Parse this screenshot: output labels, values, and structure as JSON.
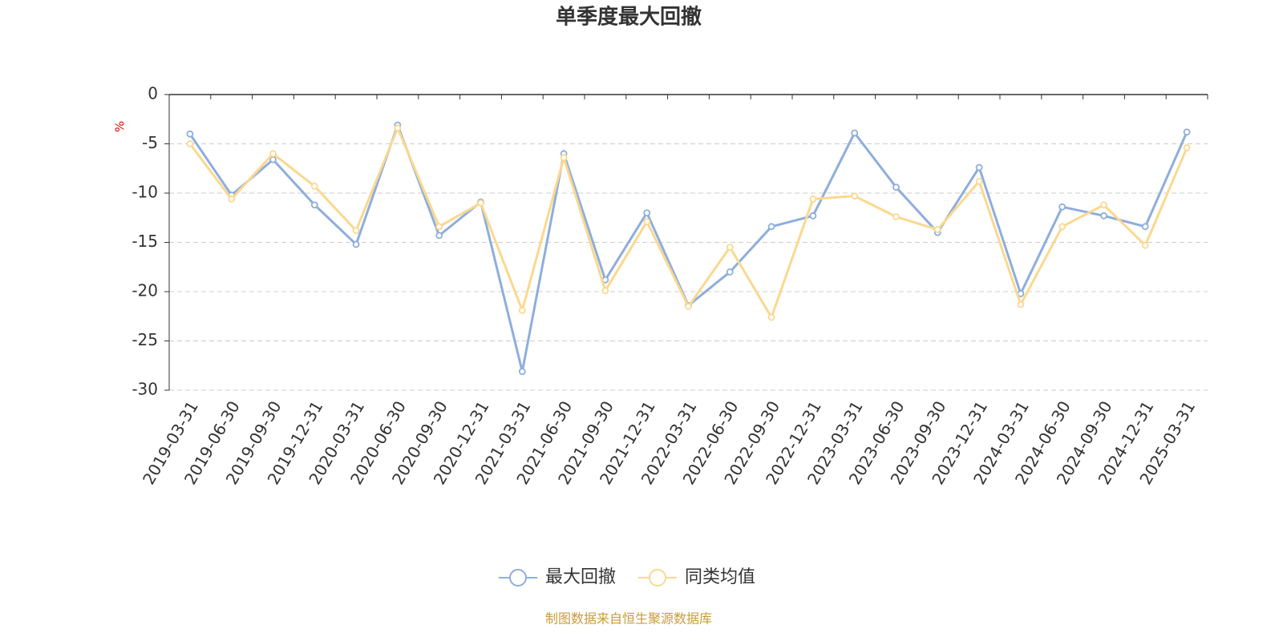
{
  "chart_data": {
    "type": "line",
    "title": "单季度最大回撤",
    "y_label": "%",
    "categories": [
      "2019-03-31",
      "2019-06-30",
      "2019-09-30",
      "2019-12-31",
      "2020-03-31",
      "2020-06-30",
      "2020-09-30",
      "2020-12-31",
      "2021-03-31",
      "2021-06-30",
      "2021-09-30",
      "2021-12-31",
      "2022-03-31",
      "2022-06-30",
      "2022-09-30",
      "2022-12-31",
      "2023-03-31",
      "2023-06-30",
      "2023-09-30",
      "2023-12-31",
      "2024-03-31",
      "2024-06-30",
      "2024-09-30",
      "2024-12-31",
      "2025-03-31"
    ],
    "series": [
      {
        "name": "最大回撤",
        "color": "#8eaedc",
        "values": [
          -4.0,
          -10.2,
          -6.6,
          -11.2,
          -15.2,
          -3.1,
          -14.3,
          -10.9,
          -28.1,
          -6.0,
          -18.8,
          -12.0,
          -21.4,
          -18.0,
          -13.4,
          -12.3,
          -3.9,
          -9.4,
          -14.0,
          -7.4,
          -20.2,
          -11.4,
          -12.3,
          -13.4,
          -3.8
        ]
      },
      {
        "name": "同类均值",
        "color": "#fbd88f",
        "values": [
          -5.0,
          -10.6,
          -6.0,
          -9.3,
          -13.8,
          -3.4,
          -13.4,
          -11.0,
          -21.9,
          -6.4,
          -19.9,
          -12.9,
          -21.5,
          -15.5,
          -22.6,
          -10.6,
          -10.3,
          -12.4,
          -13.7,
          -8.8,
          -21.3,
          -13.4,
          -11.2,
          -15.3,
          -5.4
        ]
      }
    ],
    "ylim": [
      -30,
      0
    ],
    "yticks": [
      0,
      -5,
      -10,
      -15,
      -20,
      -25,
      -30
    ],
    "grid": true,
    "source": "制图数据来自恒生聚源数据库"
  }
}
